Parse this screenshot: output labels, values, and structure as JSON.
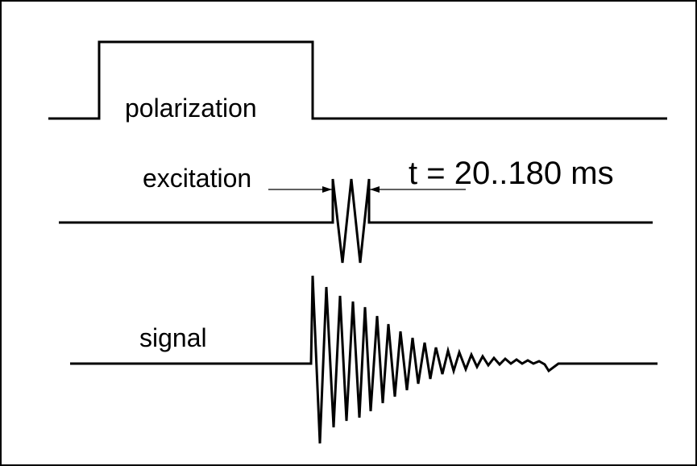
{
  "labels": {
    "polarization": "polarization",
    "excitation": "excitation",
    "signal": "signal",
    "duration": "t = 20..180 ms"
  },
  "colors": {
    "line": "#000000",
    "background": "#ffffff",
    "frame": "#000000"
  }
}
